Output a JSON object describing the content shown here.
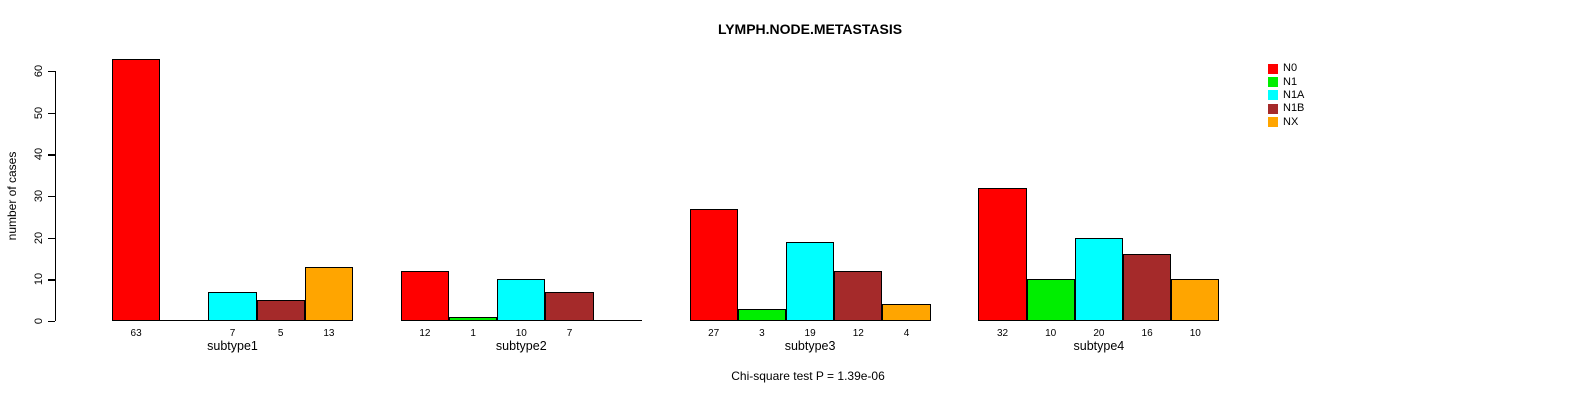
{
  "chart_data": {
    "type": "bar",
    "title": "LYMPH.NODE.METASTASIS",
    "ylabel": "number of cases",
    "footnote": "Chi-square test P = 1.39e-06",
    "categories": [
      "subtype1",
      "subtype2",
      "subtype3",
      "subtype4"
    ],
    "series": [
      {
        "name": "N0",
        "color": "#FF0000",
        "values": [
          63,
          12,
          27,
          32
        ]
      },
      {
        "name": "N1",
        "color": "#00EE00",
        "values": [
          0,
          1,
          3,
          10
        ]
      },
      {
        "name": "N1A",
        "color": "#00FFFF",
        "values": [
          7,
          10,
          19,
          20
        ]
      },
      {
        "name": "N1B",
        "color": "#A52A2A",
        "values": [
          5,
          7,
          12,
          16
        ]
      },
      {
        "name": "NX",
        "color": "#FFA500",
        "values": [
          13,
          0,
          4,
          10
        ]
      }
    ],
    "yticks": [
      0,
      10,
      20,
      30,
      40,
      50,
      60
    ],
    "ylim": [
      0,
      63
    ],
    "grid": false,
    "legend_position": "top-right",
    "bar_value_labels_shown": true,
    "zero_bars_unlabeled": true
  }
}
